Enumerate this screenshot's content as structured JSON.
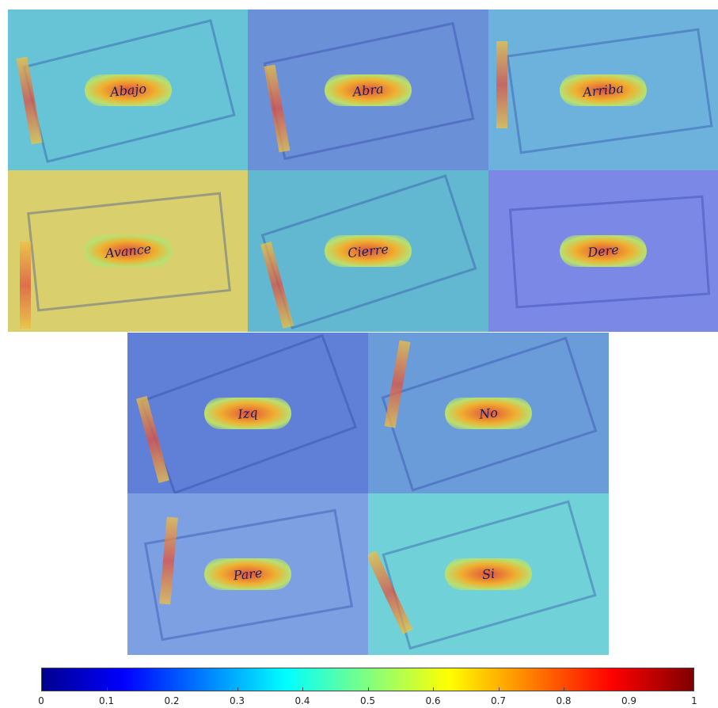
{
  "panels": [
    {
      "label": "Abajo"
    },
    {
      "label": "Abra"
    },
    {
      "label": "Arriba"
    },
    {
      "label": "Avance"
    },
    {
      "label": "Cierre"
    },
    {
      "label": "Dere"
    },
    {
      "label": "Izq"
    },
    {
      "label": "No"
    },
    {
      "label": "Pare"
    },
    {
      "label": "Si"
    }
  ],
  "colorbar": {
    "colormap": "jet",
    "range": [
      0,
      1
    ],
    "ticks": [
      0,
      0.1,
      0.2,
      0.3,
      0.4,
      0.5,
      0.6,
      0.7,
      0.8,
      0.9,
      1
    ]
  }
}
